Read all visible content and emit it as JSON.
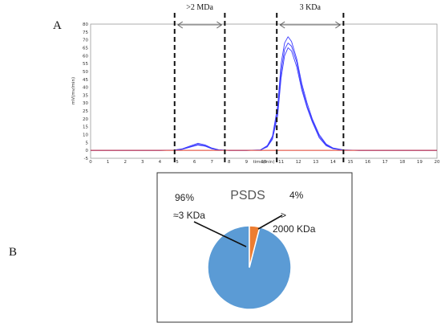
{
  "panel_a": {
    "letter": "A"
  },
  "panel_b": {
    "letter": "B"
  },
  "colors": {
    "curve": "#3a3aff",
    "baseline": "#e03a2a",
    "pie_main": "#5b9bd5",
    "pie_minor": "#ed7d31",
    "dash": "#111111",
    "frame": "#333333"
  },
  "chart_data": [
    {
      "type": "line",
      "title": "",
      "xlabel": "time(min)",
      "ylabel": "mV(mv/min)",
      "xlim": [
        0,
        20
      ],
      "ylim": [
        -5,
        80
      ],
      "xticks": [
        0,
        1,
        2,
        3,
        4,
        5,
        6,
        7,
        8,
        9,
        10,
        11,
        12,
        13,
        14,
        15,
        16,
        17,
        18,
        19,
        20
      ],
      "yticks": [
        -5,
        0,
        5,
        10,
        15,
        20,
        25,
        30,
        35,
        40,
        45,
        50,
        55,
        60,
        65,
        70,
        75,
        80
      ],
      "regions": [
        {
          "label": ">2 MDa",
          "from": 4.85,
          "to": 7.75
        },
        {
          "label": "3 KDa",
          "from": 10.75,
          "to": 14.6
        }
      ],
      "series": [
        {
          "x": [
            0,
            2,
            4,
            4.8,
            5.3,
            5.8,
            6.2,
            6.6,
            7.0,
            7.4,
            8,
            9,
            9.8,
            10.2,
            10.5,
            10.8,
            11.0,
            11.2,
            11.4,
            11.6,
            11.9,
            12.2,
            12.5,
            12.8,
            13.2,
            13.6,
            14.0,
            14.6,
            15.5,
            17,
            20
          ],
          "y": [
            0,
            0,
            0,
            0.2,
            1,
            3,
            4.5,
            3.5,
            1.5,
            0.4,
            0,
            0,
            0.3,
            3,
            9,
            28,
            55,
            68,
            72,
            69,
            58,
            42,
            30,
            20,
            10,
            4,
            1.5,
            0.3,
            0,
            0,
            0
          ]
        },
        {
          "x": [
            0,
            2,
            4,
            4.8,
            5.3,
            5.8,
            6.2,
            6.6,
            7.0,
            7.4,
            8,
            9,
            9.8,
            10.2,
            10.5,
            10.8,
            11.0,
            11.2,
            11.4,
            11.6,
            11.9,
            12.2,
            12.5,
            12.8,
            13.2,
            13.6,
            14.0,
            14.6,
            15.5,
            17,
            20
          ],
          "y": [
            0,
            0,
            0,
            0.1,
            0.8,
            2.5,
            3.8,
            3.0,
            1.2,
            0.3,
            0,
            0,
            0.2,
            2.5,
            8,
            25,
            50,
            64,
            68,
            66,
            56,
            40,
            28,
            19,
            9,
            3.5,
            1.2,
            0.2,
            0,
            0,
            0
          ]
        },
        {
          "x": [
            0,
            2,
            4,
            4.8,
            5.3,
            5.8,
            6.2,
            6.6,
            7.0,
            7.4,
            8,
            9,
            9.8,
            10.2,
            10.5,
            10.8,
            11.0,
            11.2,
            11.4,
            11.6,
            11.9,
            12.2,
            12.5,
            12.8,
            13.2,
            13.6,
            14.0,
            14.6,
            15.5,
            17,
            20
          ],
          "y": [
            0,
            0,
            0,
            0.1,
            0.7,
            2.2,
            3.4,
            2.7,
            1.0,
            0.2,
            0,
            0,
            0.2,
            2.2,
            7,
            22,
            46,
            60,
            65,
            63,
            53,
            38,
            27,
            18,
            8,
            3,
            1,
            0.2,
            0,
            0,
            0
          ]
        },
        {
          "x": [
            0,
            20
          ],
          "y": [
            0,
            0
          ]
        }
      ]
    },
    {
      "type": "pie",
      "title": "PSDS",
      "slices": [
        {
          "label": "≈3 KDa",
          "percent": "96%",
          "value": 96
        },
        {
          "label": "> 2000 KDa",
          "percent": "4%",
          "value": 4
        }
      ]
    }
  ]
}
